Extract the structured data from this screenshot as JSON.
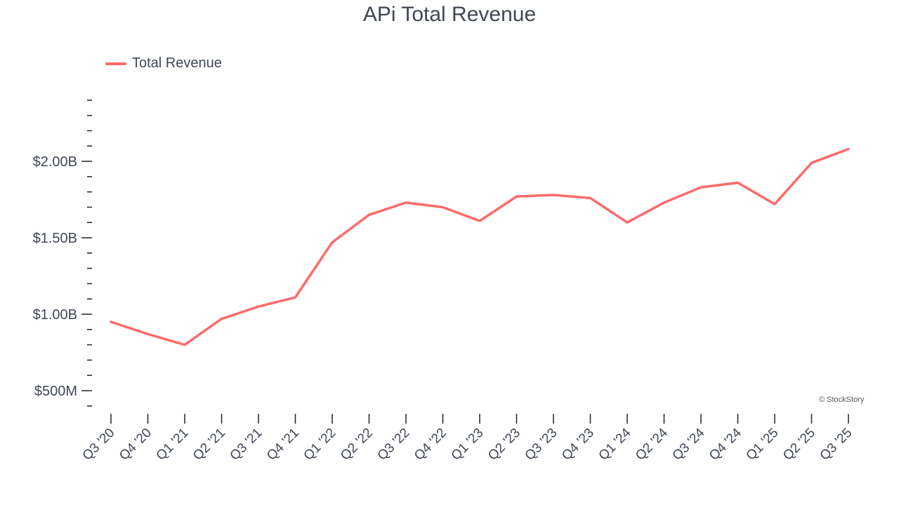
{
  "chart_data": {
    "type": "line",
    "title": "APi Total Revenue",
    "xlabel": "",
    "ylabel": "",
    "categories": [
      "Q3 '20",
      "Q4 '20",
      "Q1 '21",
      "Q2 '21",
      "Q3 '21",
      "Q4 '21",
      "Q1 '22",
      "Q2 '22",
      "Q3 '22",
      "Q4 '22",
      "Q1 '23",
      "Q2 '23",
      "Q3 '23",
      "Q4 '23",
      "Q1 '24",
      "Q2 '24",
      "Q3 '24",
      "Q4 '24",
      "Q1 '25",
      "Q2 '25",
      "Q3 '25"
    ],
    "series": [
      {
        "name": "Total Revenue",
        "color": "#fe6a6b",
        "unit": "billions USD",
        "values": [
          0.95,
          0.87,
          0.8,
          0.97,
          1.05,
          1.11,
          1.47,
          1.65,
          1.73,
          1.7,
          1.61,
          1.77,
          1.78,
          1.76,
          1.6,
          1.73,
          1.83,
          1.86,
          1.72,
          1.99,
          2.08
        ]
      }
    ],
    "ylim": [
      0.4,
      2.4
    ],
    "yticks": [
      {
        "value": 0.5,
        "label": "$500M"
      },
      {
        "value": 1.0,
        "label": "$1.00B"
      },
      {
        "value": 1.5,
        "label": "$1.50B"
      },
      {
        "value": 2.0,
        "label": "$2.00B"
      }
    ],
    "minor_tick_step": 0.1,
    "grid": false,
    "legend": "top-left"
  },
  "credit": "© StockStory"
}
